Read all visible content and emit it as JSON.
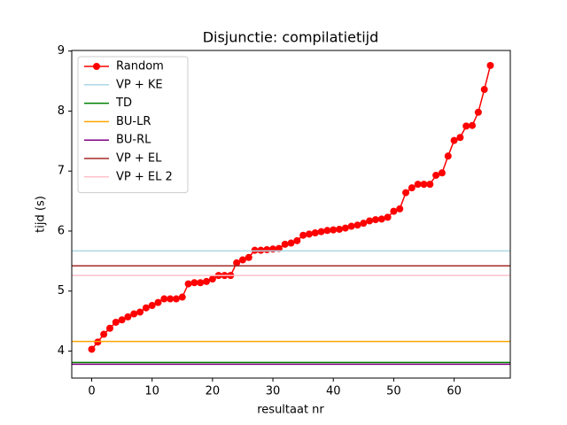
{
  "chart_data": {
    "type": "line",
    "title": "Disjunctie: compilatietijd",
    "xlabel": "resultaat nr",
    "ylabel": "tijd (s)",
    "x": [
      0,
      1,
      2,
      3,
      4,
      5,
      6,
      7,
      8,
      9,
      10,
      11,
      12,
      13,
      14,
      15,
      16,
      17,
      18,
      19,
      20,
      21,
      22,
      23,
      24,
      25,
      26,
      27,
      28,
      29,
      30,
      31,
      32,
      33,
      34,
      35,
      36,
      37,
      38,
      39,
      40,
      41,
      42,
      43,
      44,
      45,
      46,
      47,
      48,
      49,
      50,
      51,
      52,
      53,
      54,
      55,
      56,
      57,
      58,
      59,
      60,
      61,
      62,
      63,
      64,
      65,
      66
    ],
    "series": [
      {
        "name": "Random",
        "color": "#ff0000",
        "marker": "o",
        "values": [
          4.03,
          4.15,
          4.28,
          4.38,
          4.48,
          4.52,
          4.57,
          4.62,
          4.65,
          4.72,
          4.76,
          4.81,
          4.87,
          4.87,
          4.87,
          4.9,
          5.12,
          5.14,
          5.14,
          5.16,
          5.2,
          5.26,
          5.26,
          5.26,
          5.47,
          5.52,
          5.56,
          5.68,
          5.68,
          5.69,
          5.7,
          5.71,
          5.78,
          5.8,
          5.84,
          5.93,
          5.95,
          5.97,
          5.99,
          6.01,
          6.02,
          6.03,
          6.05,
          6.08,
          6.1,
          6.13,
          6.17,
          6.19,
          6.2,
          6.23,
          6.33,
          6.37,
          6.64,
          6.72,
          6.78,
          6.78,
          6.78,
          6.93,
          6.97,
          7.25,
          7.51,
          7.56,
          7.75,
          7.76,
          7.98,
          8.36,
          8.76
        ]
      },
      {
        "name": "VP + KE",
        "color": "#add8e6",
        "y": 5.67
      },
      {
        "name": "TD",
        "color": "#008000",
        "y": 3.81
      },
      {
        "name": "BU-LR",
        "color": "#ffa500",
        "y": 4.16
      },
      {
        "name": "BU-RL",
        "color": "#800080",
        "y": 3.78
      },
      {
        "name": "VP + EL",
        "color": "#a52a2a",
        "y": 5.42
      },
      {
        "name": "VP + EL 2",
        "color": "#ffc0cb",
        "y": 5.26
      }
    ],
    "xlim": [
      -3.3,
      69.3
    ],
    "ylim": [
      3.55,
      9.01
    ],
    "xticks": [
      0,
      10,
      20,
      30,
      40,
      50,
      60
    ],
    "yticks": [
      4,
      5,
      6,
      7,
      8,
      9
    ],
    "legend": "upper left"
  }
}
